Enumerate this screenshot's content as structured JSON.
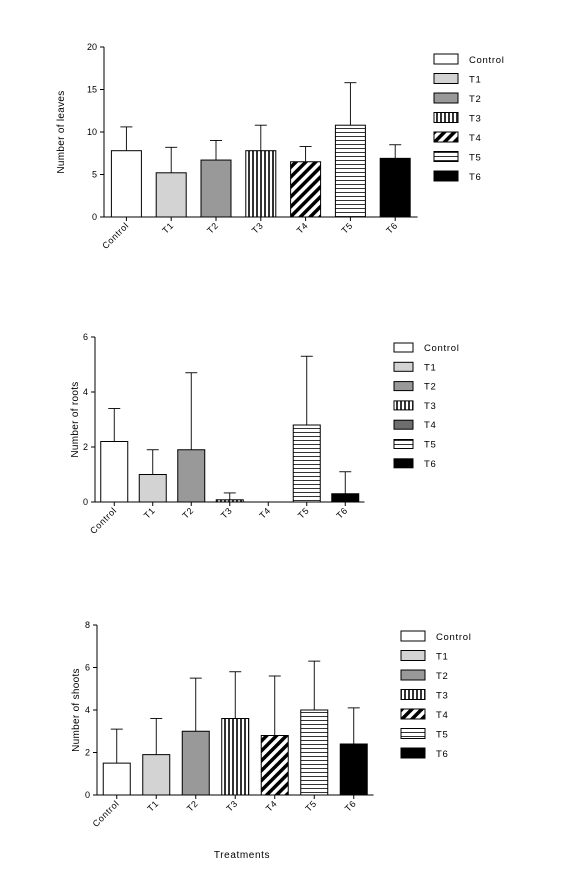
{
  "chart_data": [
    {
      "type": "bar",
      "ylabel": "Number of leaves",
      "xlabel": "",
      "ylim": [
        0,
        20
      ],
      "yticks": [
        0,
        5,
        10,
        15,
        20
      ],
      "legend": "right",
      "categories": [
        "Control",
        "T1",
        "T2",
        "T3",
        "T4",
        "T5",
        "T6"
      ],
      "values": [
        7.8,
        5.2,
        6.7,
        7.8,
        6.5,
        10.8,
        6.9
      ],
      "errors": [
        2.8,
        3.0,
        2.3,
        3.0,
        1.8,
        5.0,
        1.6
      ],
      "patterns": [
        "white",
        "lightgray",
        "gray",
        "vstripe",
        "diag",
        "hstripe",
        "black"
      ]
    },
    {
      "type": "bar",
      "ylabel": "Number of roots",
      "xlabel": "",
      "ylim": [
        0,
        6
      ],
      "yticks": [
        0,
        2,
        4,
        6
      ],
      "legend": "right",
      "categories": [
        "Control",
        "T1",
        "T2",
        "T3",
        "T4",
        "T5",
        "T6"
      ],
      "values": [
        2.2,
        1.0,
        1.9,
        0.08,
        0.0,
        2.8,
        0.3
      ],
      "errors": [
        1.2,
        0.9,
        2.8,
        0.25,
        0.0,
        2.5,
        0.8
      ],
      "patterns": [
        "white",
        "lightgray",
        "gray",
        "vstripe",
        "darkgray",
        "hstripe",
        "black"
      ]
    },
    {
      "type": "bar",
      "ylabel": "Number of shoots",
      "xlabel": "Treatments",
      "ylim": [
        0,
        8
      ],
      "yticks": [
        0,
        2,
        4,
        6,
        8
      ],
      "legend": "right",
      "categories": [
        "Control",
        "T1",
        "T2",
        "T3",
        "T4",
        "T5",
        "T6"
      ],
      "values": [
        1.5,
        1.9,
        3.0,
        3.6,
        2.8,
        4.0,
        2.4
      ],
      "errors": [
        1.6,
        1.7,
        2.5,
        2.2,
        2.8,
        2.3,
        1.7
      ],
      "patterns": [
        "white",
        "lightgray",
        "gray",
        "vstripe",
        "diag",
        "hstripe",
        "black"
      ]
    }
  ]
}
